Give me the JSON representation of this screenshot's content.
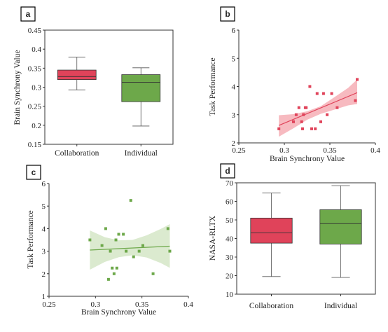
{
  "colors": {
    "red": "#e0435a",
    "red_light": "#f4a3ab",
    "green": "#6da84a",
    "green_light": "#cfe3bf",
    "axis": "#333333"
  },
  "chart_data": [
    {
      "panel": "a",
      "type": "box",
      "categories": [
        "Collaboration",
        "Individual"
      ],
      "ylabel": "Brain Synchrony Value",
      "ylim": [
        0.15,
        0.45
      ],
      "yticks": [
        "0.15",
        "0.2",
        "0.25",
        "0.3",
        "0.35",
        "0.4",
        "0.45"
      ],
      "boxes": [
        {
          "name": "Collaboration",
          "min": 0.293,
          "q1": 0.32,
          "median": 0.328,
          "q3": 0.345,
          "max": 0.379,
          "color": "red"
        },
        {
          "name": "Individual",
          "min": 0.198,
          "q1": 0.262,
          "median": 0.313,
          "q3": 0.333,
          "max": 0.351,
          "color": "green"
        }
      ]
    },
    {
      "panel": "b",
      "type": "scatter",
      "xlabel": "Brain Synchrony Value",
      "ylabel": "Task Performance",
      "xlim": [
        0.25,
        0.4
      ],
      "ylim": [
        2,
        6
      ],
      "xticks": [
        "0.25",
        "0.3",
        "0.35",
        "0.4"
      ],
      "yticks": [
        "2",
        "3",
        "4",
        "5",
        "6"
      ],
      "color": "red",
      "points": [
        [
          0.294,
          2.5
        ],
        [
          0.31,
          2.75
        ],
        [
          0.313,
          3.0
        ],
        [
          0.316,
          3.25
        ],
        [
          0.319,
          2.75
        ],
        [
          0.32,
          2.5
        ],
        [
          0.321,
          3.0
        ],
        [
          0.323,
          3.25
        ],
        [
          0.324,
          3.25
        ],
        [
          0.328,
          4.0
        ],
        [
          0.33,
          2.5
        ],
        [
          0.334,
          2.5
        ],
        [
          0.336,
          3.75
        ],
        [
          0.34,
          2.75
        ],
        [
          0.343,
          3.75
        ],
        [
          0.347,
          3.0
        ],
        [
          0.352,
          3.75
        ],
        [
          0.358,
          3.25
        ],
        [
          0.378,
          3.5
        ],
        [
          0.38,
          4.25
        ]
      ],
      "fit": {
        "x": [
          0.294,
          0.38
        ],
        "y": [
          2.62,
          3.78
        ]
      },
      "ci_upper": [
        [
          0.294,
          2.98
        ],
        [
          0.31,
          3.02
        ],
        [
          0.325,
          3.12
        ],
        [
          0.34,
          3.3
        ],
        [
          0.355,
          3.62
        ],
        [
          0.37,
          3.95
        ],
        [
          0.38,
          4.25
        ]
      ],
      "ci_lower": [
        [
          0.294,
          2.22
        ],
        [
          0.31,
          2.52
        ],
        [
          0.325,
          2.82
        ],
        [
          0.34,
          3.03
        ],
        [
          0.355,
          3.18
        ],
        [
          0.37,
          3.33
        ],
        [
          0.38,
          3.38
        ]
      ]
    },
    {
      "panel": "c",
      "type": "scatter",
      "xlabel": "Brain Synchrony Value",
      "ylabel": "Task Performance",
      "xlim": [
        0.25,
        0.4
      ],
      "ylim": [
        1,
        6
      ],
      "xticks": [
        "0.25",
        "0.3",
        "0.35",
        "0.4"
      ],
      "yticks": [
        "1",
        "2",
        "3",
        "4",
        "5",
        "6"
      ],
      "color": "green",
      "points": [
        [
          0.294,
          3.5
        ],
        [
          0.307,
          3.25
        ],
        [
          0.311,
          4.0
        ],
        [
          0.314,
          1.75
        ],
        [
          0.316,
          3.0
        ],
        [
          0.318,
          2.25
        ],
        [
          0.32,
          2.0
        ],
        [
          0.322,
          3.5
        ],
        [
          0.323,
          2.25
        ],
        [
          0.325,
          3.75
        ],
        [
          0.33,
          3.75
        ],
        [
          0.333,
          3.0
        ],
        [
          0.338,
          5.25
        ],
        [
          0.341,
          2.75
        ],
        [
          0.347,
          3.0
        ],
        [
          0.351,
          3.25
        ],
        [
          0.362,
          2.0
        ],
        [
          0.378,
          4.0
        ],
        [
          0.38,
          3.0
        ]
      ],
      "fit": {
        "x": [
          0.294,
          0.38
        ],
        "y": [
          3.05,
          3.22
        ]
      },
      "ci_upper": [
        [
          0.294,
          3.92
        ],
        [
          0.31,
          3.62
        ],
        [
          0.325,
          3.48
        ],
        [
          0.34,
          3.5
        ],
        [
          0.355,
          3.7
        ],
        [
          0.37,
          3.98
        ],
        [
          0.38,
          4.2
        ]
      ],
      "ci_lower": [
        [
          0.294,
          2.18
        ],
        [
          0.31,
          2.52
        ],
        [
          0.325,
          2.73
        ],
        [
          0.34,
          2.82
        ],
        [
          0.355,
          2.72
        ],
        [
          0.37,
          2.48
        ],
        [
          0.38,
          2.26
        ]
      ]
    },
    {
      "panel": "d",
      "type": "box",
      "categories": [
        "Collaboration",
        "Individual"
      ],
      "ylabel": "NASA-RLTX",
      "ylim": [
        10,
        70
      ],
      "yticks": [
        "10",
        "20",
        "30",
        "40",
        "50",
        "60",
        "70"
      ],
      "boxes": [
        {
          "name": "Collaboration",
          "min": 19.5,
          "q1": 37.5,
          "median": 43.0,
          "q3": 51.0,
          "max": 64.5,
          "color": "red"
        },
        {
          "name": "Individual",
          "min": 19.0,
          "q1": 37.0,
          "median": 48.0,
          "q3": 55.5,
          "max": 68.5,
          "color": "green"
        }
      ]
    }
  ]
}
